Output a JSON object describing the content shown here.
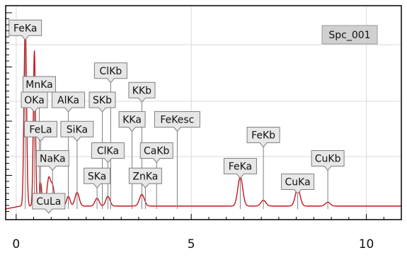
{
  "chart_data": {
    "type": "line",
    "title": "",
    "xlabel": "",
    "ylabel": "",
    "xlim": [
      -0.3,
      11
    ],
    "ylim": [
      0,
      100
    ],
    "xticks": [
      0,
      5,
      10
    ],
    "spectrum_name": "Spc_001",
    "grid": true,
    "colors": {
      "spectrum": "#c4161c",
      "frame": "#000000",
      "peak_line": "#7f7f7f",
      "label_box": "#e7e7e7",
      "spectrum_box": "#d0d0d0"
    },
    "spectrum": {
      "baseline": 1.5,
      "peaks": [
        {
          "x": 0.26,
          "height": 95,
          "width": 0.035
        },
        {
          "x": 0.52,
          "height": 80,
          "width": 0.03
        },
        {
          "x": 0.7,
          "height": 12,
          "width": 0.03
        },
        {
          "x": 0.93,
          "height": 14,
          "width": 0.05
        },
        {
          "x": 1.04,
          "height": 10,
          "width": 0.05
        },
        {
          "x": 1.49,
          "height": 5,
          "width": 0.05
        },
        {
          "x": 1.74,
          "height": 7,
          "width": 0.06
        },
        {
          "x": 2.31,
          "height": 4,
          "width": 0.06
        },
        {
          "x": 2.62,
          "height": 5,
          "width": 0.06
        },
        {
          "x": 3.59,
          "height": 6,
          "width": 0.07
        },
        {
          "x": 6.4,
          "height": 15,
          "width": 0.07
        },
        {
          "x": 7.06,
          "height": 3,
          "width": 0.07
        },
        {
          "x": 8.04,
          "height": 9,
          "width": 0.07
        },
        {
          "x": 8.9,
          "height": 2,
          "width": 0.07
        }
      ]
    },
    "peak_labels": [
      {
        "label": "FeKa",
        "x": 0.26,
        "line_top": 97
      },
      {
        "label": "MnKa",
        "x": 0.66,
        "line_top": 68
      },
      {
        "label": "ClKb",
        "x": 2.7,
        "line_top": 75
      },
      {
        "label": "OKa",
        "x": 0.52,
        "line_top": 60
      },
      {
        "label": "AlKa",
        "x": 1.49,
        "line_top": 60
      },
      {
        "label": "SKb",
        "x": 2.46,
        "line_top": 60
      },
      {
        "label": "KKb",
        "x": 3.59,
        "line_top": 65
      },
      {
        "label": "FeLa",
        "x": 0.7,
        "line_top": 45
      },
      {
        "label": "SiKa",
        "x": 1.74,
        "line_top": 45
      },
      {
        "label": "KKa",
        "x": 3.31,
        "line_top": 50
      },
      {
        "label": "FeKesc",
        "x": 4.6,
        "line_top": 50
      },
      {
        "label": "NaKa",
        "x": 1.04,
        "line_top": 30
      },
      {
        "label": "ClKa",
        "x": 2.62,
        "line_top": 34
      },
      {
        "label": "CaKb",
        "x": 4.01,
        "line_top": 34
      },
      {
        "label": "FeKb",
        "x": 7.06,
        "line_top": 42
      },
      {
        "label": "CuKb",
        "x": 8.9,
        "line_top": 30
      },
      {
        "label": "FeKa",
        "x": 6.4,
        "line_top": 26
      },
      {
        "label": "SKa",
        "x": 2.31,
        "line_top": 21
      },
      {
        "label": "ZnKa",
        "x": 3.69,
        "line_top": 21
      },
      {
        "label": "CuKa",
        "x": 8.04,
        "line_top": 18
      },
      {
        "label": "CuLa",
        "x": 0.93,
        "line_top": 8
      }
    ]
  }
}
